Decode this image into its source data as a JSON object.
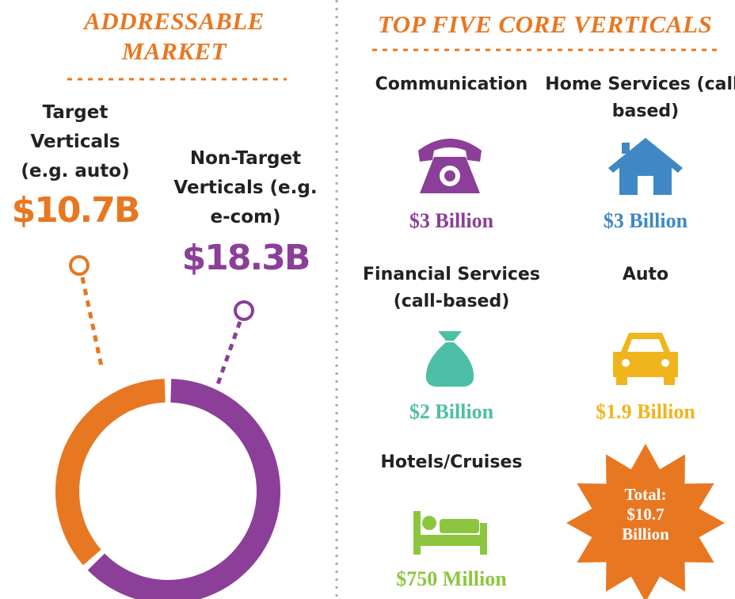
{
  "chart_data": {
    "type": "donut",
    "title": "ADDRESSABLE MARKET",
    "categories": [
      "Target Verticals (e.g. auto)",
      "Non-Target Verticals (e.g. e-com)"
    ],
    "values": [
      10.7,
      18.3
    ],
    "value_labels": [
      "$10.7B",
      "$18.3B"
    ],
    "colors": [
      "#e87722",
      "#8b3f98"
    ]
  },
  "verticals": {
    "title": "TOP FIVE CORE VERTICALS",
    "items": [
      {
        "name": "Communication",
        "amount": "$3 Billion",
        "color": "#8b3f98"
      },
      {
        "name": "Home Services (call-based)",
        "amount": "$3 Billion",
        "color": "#3f88c5"
      },
      {
        "name": "Financial Services (call-based)",
        "amount": "$2 Billion",
        "color": "#4cbfa6"
      },
      {
        "name": "Auto",
        "amount": "$1.9 Billion",
        "color": "#f0b51c"
      },
      {
        "name": "Hotels/Cruises",
        "amount": "$750 Million",
        "color": "#8cc63f"
      }
    ],
    "total": "Total: $10.7 Billion"
  }
}
